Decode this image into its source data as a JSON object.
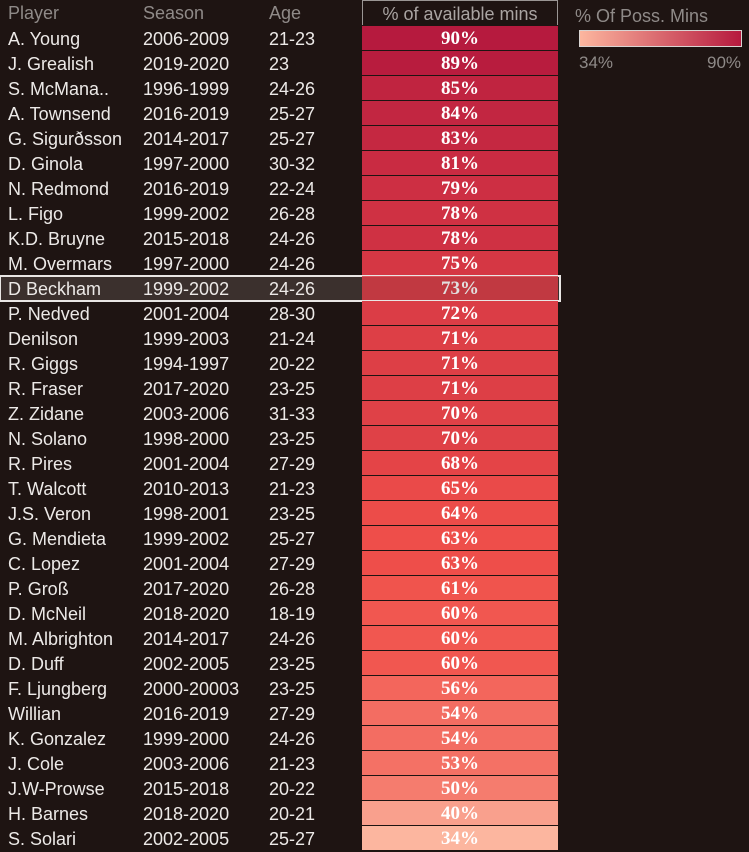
{
  "headers": {
    "player": "Player",
    "season": "Season",
    "age": "Age",
    "pct": "% of available mins"
  },
  "legend": {
    "title": "% Of Poss. Mins",
    "min_label": "34%",
    "max_label": "90%",
    "min_color": "#fcb69f",
    "max_color": "#b61a3e"
  },
  "highlight_player": "D Beckham",
  "chart_data": {
    "type": "table",
    "columns": [
      "Player",
      "Season",
      "Age",
      "% of available mins"
    ],
    "rows": [
      {
        "player": "A. Young",
        "season": "2006-2009",
        "age": "21-23",
        "value": 90,
        "label": "90%"
      },
      {
        "player": "J. Grealish",
        "season": "2019-2020",
        "age": "23",
        "value": 89,
        "label": "89%"
      },
      {
        "player": "S. McMana..",
        "season": "1996-1999",
        "age": "24-26",
        "value": 85,
        "label": "85%"
      },
      {
        "player": "A. Townsend",
        "season": "2016-2019",
        "age": "25-27",
        "value": 84,
        "label": "84%"
      },
      {
        "player": "G. Sigurðsson",
        "season": "2014-2017",
        "age": "25-27",
        "value": 83,
        "label": "83%"
      },
      {
        "player": "D. Ginola",
        "season": "1997-2000",
        "age": "30-32",
        "value": 81,
        "label": "81%"
      },
      {
        "player": "N. Redmond",
        "season": "2016-2019",
        "age": "22-24",
        "value": 79,
        "label": "79%"
      },
      {
        "player": "L. Figo",
        "season": "1999-2002",
        "age": "26-28",
        "value": 78,
        "label": "78%"
      },
      {
        "player": "K.D. Bruyne",
        "season": "2015-2018",
        "age": "24-26",
        "value": 78,
        "label": "78%"
      },
      {
        "player": "M. Overmars",
        "season": "1997-2000",
        "age": "24-26",
        "value": 75,
        "label": "75%"
      },
      {
        "player": "D Beckham",
        "season": "1999-2002",
        "age": "24-26",
        "value": 73,
        "label": "73%"
      },
      {
        "player": "P. Nedved",
        "season": "2001-2004",
        "age": "28-30",
        "value": 72,
        "label": "72%"
      },
      {
        "player": "Denilson",
        "season": "1999-2003",
        "age": "21-24",
        "value": 71,
        "label": "71%"
      },
      {
        "player": "R. Giggs",
        "season": "1994-1997",
        "age": "20-22",
        "value": 71,
        "label": "71%"
      },
      {
        "player": "R. Fraser",
        "season": "2017-2020",
        "age": "23-25",
        "value": 71,
        "label": "71%"
      },
      {
        "player": "Z. Zidane",
        "season": "2003-2006",
        "age": "31-33",
        "value": 70,
        "label": "70%"
      },
      {
        "player": "N. Solano",
        "season": "1998-2000",
        "age": "23-25",
        "value": 70,
        "label": "70%"
      },
      {
        "player": "R. Pires",
        "season": "2001-2004",
        "age": "27-29",
        "value": 68,
        "label": "68%"
      },
      {
        "player": "T. Walcott",
        "season": "2010-2013",
        "age": "21-23",
        "value": 65,
        "label": "65%"
      },
      {
        "player": "J.S. Veron",
        "season": "1998-2001",
        "age": "23-25",
        "value": 64,
        "label": "64%"
      },
      {
        "player": "G. Mendieta",
        "season": "1999-2002",
        "age": "25-27",
        "value": 63,
        "label": "63%"
      },
      {
        "player": "C. Lopez",
        "season": "2001-2004",
        "age": "27-29",
        "value": 63,
        "label": "63%"
      },
      {
        "player": "P. Groß",
        "season": "2017-2020",
        "age": "26-28",
        "value": 61,
        "label": "61%"
      },
      {
        "player": "D. McNeil",
        "season": "2018-2020",
        "age": "18-19",
        "value": 60,
        "label": "60%"
      },
      {
        "player": "M. Albrighton",
        "season": "2014-2017",
        "age": "24-26",
        "value": 60,
        "label": "60%"
      },
      {
        "player": "D. Duff",
        "season": "2002-2005",
        "age": "23-25",
        "value": 60,
        "label": "60%"
      },
      {
        "player": "F. Ljungberg",
        "season": "2000-20003",
        "age": "23-25",
        "value": 56,
        "label": "56%"
      },
      {
        "player": "Willian",
        "season": "2016-2019",
        "age": "27-29",
        "value": 54,
        "label": "54%"
      },
      {
        "player": "K. Gonzalez",
        "season": "1999-2000",
        "age": "24-26",
        "value": 54,
        "label": "54%"
      },
      {
        "player": "J. Cole",
        "season": "2003-2006",
        "age": "21-23",
        "value": 53,
        "label": "53%"
      },
      {
        "player": "J.W-Prowse",
        "season": "2015-2018",
        "age": "20-22",
        "value": 50,
        "label": "50%"
      },
      {
        "player": "H. Barnes",
        "season": "2018-2020",
        "age": "20-21",
        "value": 40,
        "label": "40%"
      },
      {
        "player": "S. Solari",
        "season": "2002-2005",
        "age": "25-27",
        "value": 34,
        "label": "34%"
      }
    ],
    "color_scale": {
      "min": 34,
      "max": 90
    }
  }
}
